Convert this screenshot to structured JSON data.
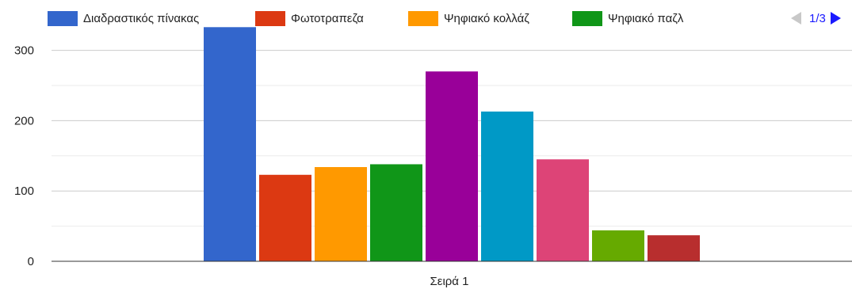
{
  "chart_data": {
    "type": "bar",
    "categories": [
      "Σειρά 1"
    ],
    "series": [
      {
        "name": "Διαδραστικός πίνακας",
        "values": [
          333
        ],
        "color": "#3366cc"
      },
      {
        "name": "Φωτοτραπεζα",
        "values": [
          123
        ],
        "color": "#dc3912"
      },
      {
        "name": "Ψηφιακό κολλάζ",
        "values": [
          134
        ],
        "color": "#ff9900"
      },
      {
        "name": "Ψηφιακό παζλ",
        "values": [
          138
        ],
        "color": "#109618"
      },
      {
        "name": "",
        "values": [
          270
        ],
        "color": "#990099"
      },
      {
        "name": "",
        "values": [
          213
        ],
        "color": "#0099c6"
      },
      {
        "name": "",
        "values": [
          145
        ],
        "color": "#dd4477"
      },
      {
        "name": "",
        "values": [
          44
        ],
        "color": "#66aa00"
      },
      {
        "name": "",
        "values": [
          37
        ],
        "color": "#b82e2e"
      }
    ],
    "yticks": [
      0,
      100,
      200,
      300
    ],
    "ylim": [
      0,
      335
    ],
    "grid": true,
    "legend": "top"
  },
  "legend_pager": {
    "label": "1/3",
    "prev": "left-triangle-icon",
    "next": "right-triangle-icon"
  }
}
